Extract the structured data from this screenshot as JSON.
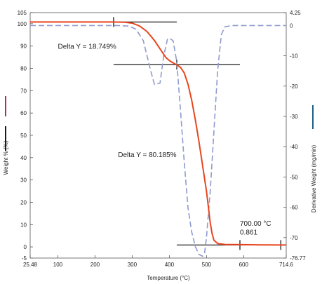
{
  "chart_data": {
    "type": "line",
    "title": "",
    "xlabel": "Temperature (°C)",
    "ylabel_left": "Weight % (%)",
    "ylabel_right": "Derivative Weight (mg/min)",
    "xlim": [
      25.48,
      714.6
    ],
    "ylim_left": [
      -5,
      105
    ],
    "ylim_right": [
      -76.77,
      4.25
    ],
    "x_ticks": [
      "25.48",
      "100",
      "200",
      "300",
      "400",
      "500",
      "600",
      "714.6"
    ],
    "y_left_ticks": [
      "105",
      "100",
      "90",
      "80",
      "70",
      "60",
      "50",
      "40",
      "30",
      "20",
      "10",
      "0",
      "-5"
    ],
    "y_right_ticks": [
      "4.25",
      "0",
      "-10",
      "-20",
      "-30",
      "-40",
      "-50",
      "-60",
      "-70",
      "-76.77"
    ],
    "grid": false,
    "series": [
      {
        "axis": "left",
        "color": "#e8461f",
        "style": "solid",
        "x": [
          25.48,
          100,
          200,
          250,
          280,
          300,
          320,
          340,
          360,
          380,
          390,
          400,
          410,
          420,
          430,
          440,
          450,
          460,
          470,
          480,
          490,
          500,
          505,
          510,
          515,
          520,
          530,
          550,
          600,
          650,
          700,
          714.6
        ],
        "y": [
          100.8,
          100.8,
          100.8,
          100.8,
          100.7,
          100.3,
          99,
          96.5,
          92.5,
          87.5,
          85,
          83.5,
          82.5,
          81.6,
          80.5,
          78,
          73,
          66,
          57,
          47,
          36,
          25,
          18,
          11,
          6,
          3,
          1.5,
          1.1,
          1,
          0.9,
          0.861,
          0.86
        ]
      },
      {
        "axis": "right",
        "color": "#8f9bcf",
        "style": "dashed",
        "x": [
          25.48,
          100,
          200,
          260,
          290,
          310,
          330,
          350,
          360,
          375,
          385,
          395,
          400,
          410,
          420,
          430,
          440,
          450,
          460,
          470,
          480,
          490,
          495,
          500,
          510,
          520,
          530,
          540,
          550,
          570,
          600,
          650,
          700,
          714.6
        ],
        "y": [
          0,
          0,
          0,
          0,
          -0.2,
          -1.2,
          -5,
          -15,
          -19.5,
          -19,
          -10,
          -4.5,
          -4.2,
          -5,
          -12,
          -28,
          -45,
          -60,
          -68,
          -73,
          -75.6,
          -76.2,
          -75,
          -70,
          -55,
          -35,
          -15,
          -3,
          -0.4,
          0,
          0,
          0,
          0,
          0
        ]
      }
    ],
    "reference_lines": [
      {
        "x1": 25.48,
        "x2": 420,
        "y": 100.8
      },
      {
        "x1": 250,
        "x2": 590,
        "y": 81.7
      },
      {
        "x1": 420,
        "x2": 714.6,
        "y": 0.861
      }
    ],
    "reference_markers": [
      {
        "x": 250,
        "y": 100.8
      },
      {
        "x": 420,
        "y": 81.7
      },
      {
        "x": 590,
        "y": 0.861
      },
      {
        "x": 700,
        "y": 0.861
      }
    ],
    "annotations": [
      {
        "text": "Delta Y = 18.749%",
        "x": 100,
        "y": 88.8
      },
      {
        "text": "Delta Y = 80.185%",
        "x": 262,
        "y": 40.3
      },
      {
        "text": "700.00 °C",
        "x": 590,
        "y": 9.5
      },
      {
        "text": "0.861",
        "x": 590,
        "y": 5.5
      }
    ],
    "legend": [
      {
        "color": "#b0304a"
      },
      {
        "color": "#1a1a1a"
      },
      {
        "color": "#1f5f8b"
      }
    ]
  }
}
